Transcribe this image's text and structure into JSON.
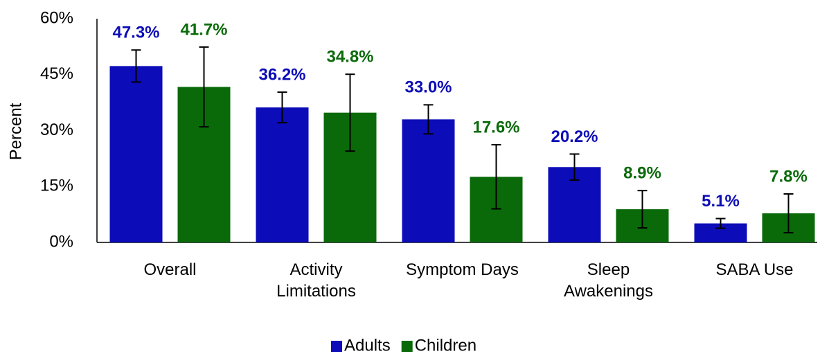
{
  "chart_data": {
    "type": "bar",
    "y_label": "Percent",
    "categories": [
      "Overall",
      "Activity\nLimitations",
      "Symptom Days",
      "Sleep\nAwakenings",
      "SABA Use"
    ],
    "series": [
      {
        "name": "Adults",
        "color": "#0c0cb8",
        "values": [
          47.3,
          36.2,
          33.0,
          20.2,
          5.1
        ],
        "value_labels": [
          "47.3%",
          "36.2%",
          "33.0%",
          "20.2%",
          "5.1%"
        ],
        "errors": [
          4.3,
          4.1,
          3.9,
          3.5,
          1.3
        ]
      },
      {
        "name": "Children",
        "color": "#0a6a0a",
        "values": [
          41.7,
          34.8,
          17.6,
          8.9,
          7.8
        ],
        "value_labels": [
          "41.7%",
          "34.8%",
          "17.6%",
          "8.9%",
          "7.8%"
        ],
        "errors": [
          10.7,
          10.3,
          8.6,
          5.0,
          5.2
        ]
      }
    ],
    "ylim": [
      0,
      60
    ],
    "yticks": [
      {
        "value": 0,
        "label": "0%"
      },
      {
        "value": 15,
        "label": "15%"
      },
      {
        "value": 30,
        "label": "30%"
      },
      {
        "value": 45,
        "label": "45%"
      },
      {
        "value": 60,
        "label": "60%"
      }
    ],
    "grid": false,
    "legend": "bottom"
  }
}
